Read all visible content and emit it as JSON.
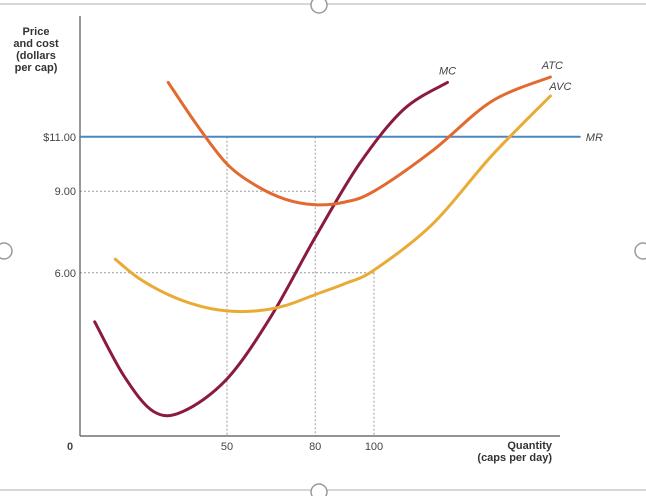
{
  "chart_data": {
    "type": "line",
    "ylabel_lines": [
      "Price",
      "and cost",
      "(dollars",
      "per cap)"
    ],
    "xlabel_lines": [
      "Quantity",
      "(caps per day)"
    ],
    "origin_label": "0",
    "xlim": [
      0,
      190
    ],
    "ylim": [
      0,
      12.5
    ],
    "x_ticks": [
      {
        "value": 50,
        "label": "50"
      },
      {
        "value": 80,
        "label": "80"
      },
      {
        "value": 100,
        "label": "100"
      }
    ],
    "y_ticks": [
      {
        "value": 11,
        "label": "$11.00"
      },
      {
        "value": 9,
        "label": "9.00"
      },
      {
        "value": 6,
        "label": "6.00"
      }
    ],
    "reference_points": [
      {
        "x": 80,
        "y": 9
      },
      {
        "x": 100,
        "y": 6
      }
    ],
    "series": [
      {
        "name": "MR",
        "color": "#4f86c1",
        "x": [
          0,
          170
        ],
        "y": [
          11,
          11
        ]
      },
      {
        "name": "MC",
        "color": "#8b1a3f",
        "x": [
          5,
          15,
          25,
          35,
          50,
          65,
          80,
          95,
          110,
          125
        ],
        "y": [
          4.2,
          2.2,
          0.9,
          0.9,
          2.1,
          4.4,
          7.3,
          10.0,
          12.0,
          13.0
        ]
      },
      {
        "name": "ATC",
        "color": "#e2692f",
        "x": [
          30,
          40,
          50,
          60,
          70,
          80,
          90,
          100,
          120,
          140,
          160
        ],
        "y": [
          13.0,
          11.4,
          10.0,
          9.2,
          8.7,
          8.5,
          8.6,
          9.0,
          10.5,
          12.3,
          13.2
        ]
      },
      {
        "name": "AVC",
        "color": "#e9ab36",
        "x": [
          12,
          20,
          30,
          40,
          50,
          60,
          70,
          80,
          90,
          100,
          120,
          140,
          160
        ],
        "y": [
          6.5,
          5.8,
          5.2,
          4.8,
          4.6,
          4.6,
          4.8,
          5.2,
          5.6,
          6.1,
          7.8,
          10.3,
          12.5
        ]
      }
    ]
  }
}
